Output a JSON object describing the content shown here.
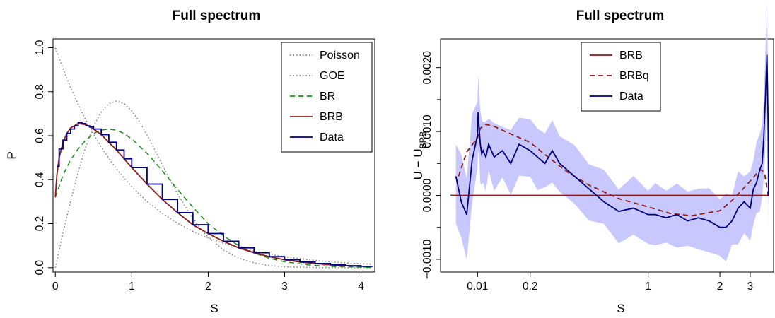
{
  "chart_data": [
    {
      "type": "line",
      "title": "Full spectrum",
      "xlabel": "S",
      "ylabel": "P",
      "xlim": [
        -0.03,
        4.18
      ],
      "ylim": [
        -0.02,
        1.04
      ],
      "xticks": [
        0,
        1,
        2,
        3,
        4
      ],
      "yticks": [
        0.0,
        0.2,
        0.4,
        0.6,
        0.8,
        1.0
      ],
      "xtick_labels": [
        "0",
        "1",
        "2",
        "3",
        "4"
      ],
      "ytick_labels": [
        "0.0",
        "0.2",
        "0.4",
        "0.6",
        "0.8",
        "1.0"
      ],
      "legend": {
        "placement": "top-right",
        "entries": [
          {
            "label": "Poisson",
            "color": "#7f7f7f",
            "style": "dotted"
          },
          {
            "label": "GOE",
            "color": "#7f7f7f",
            "style": "dotted"
          },
          {
            "label": "BR",
            "color": "#1a8c1a",
            "style": "dashed"
          },
          {
            "label": "BRB",
            "color": "#8b1a1a",
            "style": "solid"
          },
          {
            "label": "Data",
            "color": "#00007f",
            "style": "solid"
          }
        ]
      },
      "series": [
        {
          "name": "Poisson",
          "color": "#7f7f7f",
          "style": "dotted",
          "x": [
            0,
            0.1,
            0.2,
            0.3,
            0.4,
            0.5,
            0.6,
            0.7,
            0.8,
            0.9,
            1.0,
            1.2,
            1.4,
            1.6,
            1.8,
            2.0,
            2.2,
            2.4,
            2.6,
            2.8,
            3.0,
            3.2,
            3.4,
            3.6,
            3.8,
            4.0,
            4.15
          ],
          "y": [
            1.0,
            0.905,
            0.819,
            0.741,
            0.67,
            0.607,
            0.549,
            0.497,
            0.449,
            0.407,
            0.368,
            0.301,
            0.247,
            0.202,
            0.165,
            0.135,
            0.111,
            0.091,
            0.074,
            0.061,
            0.05,
            0.041,
            0.033,
            0.027,
            0.022,
            0.018,
            0.016
          ]
        },
        {
          "name": "GOE",
          "color": "#7f7f7f",
          "style": "dotted",
          "x": [
            0,
            0.1,
            0.2,
            0.3,
            0.4,
            0.5,
            0.6,
            0.7,
            0.8,
            0.9,
            1.0,
            1.1,
            1.2,
            1.3,
            1.4,
            1.5,
            1.6,
            1.7,
            1.8,
            1.9,
            2.0,
            2.2,
            2.4,
            2.6,
            2.8,
            3.0,
            3.5,
            4.15
          ],
          "y": [
            0.0,
            0.156,
            0.303,
            0.437,
            0.551,
            0.643,
            0.708,
            0.746,
            0.758,
            0.746,
            0.713,
            0.664,
            0.604,
            0.537,
            0.468,
            0.4,
            0.336,
            0.277,
            0.224,
            0.178,
            0.139,
            0.08,
            0.043,
            0.022,
            0.01,
            0.004,
            0.0,
            0.0
          ]
        },
        {
          "name": "BR",
          "color": "#1a8c1a",
          "style": "dashed",
          "x": [
            0,
            0.05,
            0.1,
            0.2,
            0.3,
            0.4,
            0.5,
            0.6,
            0.7,
            0.8,
            0.9,
            1.0,
            1.2,
            1.4,
            1.6,
            1.8,
            2.0,
            2.2,
            2.4,
            2.6,
            2.8,
            3.0,
            3.3,
            3.6,
            4.0,
            4.15
          ],
          "y": [
            0.32,
            0.37,
            0.42,
            0.49,
            0.54,
            0.58,
            0.61,
            0.625,
            0.63,
            0.625,
            0.61,
            0.585,
            0.52,
            0.44,
            0.355,
            0.275,
            0.2,
            0.145,
            0.1,
            0.067,
            0.043,
            0.027,
            0.013,
            0.006,
            0.002,
            0.001
          ]
        },
        {
          "name": "BRB",
          "color": "#8b1a1a",
          "style": "solid",
          "x": [
            0,
            0.02,
            0.05,
            0.1,
            0.15,
            0.2,
            0.3,
            0.4,
            0.5,
            0.6,
            0.7,
            0.8,
            0.9,
            1.0,
            1.2,
            1.4,
            1.6,
            1.8,
            2.0,
            2.2,
            2.4,
            2.6,
            2.8,
            3.0,
            3.2,
            3.4,
            3.6,
            3.8,
            4.0,
            4.15
          ],
          "y": [
            0.32,
            0.42,
            0.5,
            0.57,
            0.61,
            0.635,
            0.655,
            0.65,
            0.63,
            0.605,
            0.57,
            0.535,
            0.495,
            0.455,
            0.38,
            0.31,
            0.25,
            0.195,
            0.155,
            0.12,
            0.09,
            0.068,
            0.05,
            0.036,
            0.026,
            0.019,
            0.013,
            0.009,
            0.006,
            0.005
          ]
        },
        {
          "name": "Data",
          "color": "#00007f",
          "style": "solid",
          "x": [
            0.02,
            0.05,
            0.1,
            0.15,
            0.2,
            0.25,
            0.3,
            0.35,
            0.4,
            0.45,
            0.5,
            0.6,
            0.7,
            0.8,
            0.9,
            1.0,
            1.2,
            1.4,
            1.6,
            1.8,
            2.0,
            2.2,
            2.4,
            2.6,
            2.8,
            3.0,
            3.2,
            3.4,
            3.6,
            3.8,
            4.0,
            4.15
          ],
          "y": [
            0.46,
            0.54,
            0.58,
            0.61,
            0.63,
            0.645,
            0.66,
            0.655,
            0.645,
            0.64,
            0.63,
            0.605,
            0.57,
            0.535,
            0.495,
            0.455,
            0.38,
            0.31,
            0.25,
            0.195,
            0.155,
            0.12,
            0.09,
            0.068,
            0.05,
            0.036,
            0.026,
            0.019,
            0.013,
            0.009,
            0.006,
            0.005
          ]
        }
      ]
    },
    {
      "type": "line",
      "title": "Full spectrum",
      "xlabel": "S",
      "ylabel_main": "U − U",
      "ylabel_sub": "BRB",
      "x_scale": "transformed",
      "xlim": [
        0.0,
        4.2
      ],
      "ylim": [
        -0.0012,
        0.00245
      ],
      "xticks": [
        0.01,
        0.2,
        1,
        2,
        3
      ],
      "xtick_labels": [
        "0.01",
        "0.2",
        "1",
        "2",
        "3"
      ],
      "yticks": [
        -0.001,
        0.0,
        0.001,
        0.002
      ],
      "ytick_labels": [
        "−0.0010",
        "0.0000",
        "0.0010",
        "0.0020"
      ],
      "legend": {
        "placement": "top-center",
        "entries": [
          {
            "label": "BRB",
            "color": "#8b1a1a",
            "style": "solid"
          },
          {
            "label": "BRBq",
            "color": "#8b1a1a",
            "style": "dashed"
          },
          {
            "label": "Data",
            "color": "#00007f",
            "style": "solid"
          }
        ]
      },
      "band": {
        "color": "#c8c8ff",
        "half_width": [
          0.00062,
          0.00052,
          0.00047,
          0.00044,
          0.00043,
          0.00042,
          0.00042,
          0.00043,
          0.00045,
          0.00048,
          0.00055,
          0.0007
        ]
      },
      "series": [
        {
          "name": "BRB",
          "color": "#8b1a1a",
          "style": "solid",
          "x": [
            0.0,
            4.2
          ],
          "y": [
            0.0,
            0.0
          ]
        },
        {
          "name": "BRBq",
          "color": "#8b1a1a",
          "style": "dashed",
          "x": [
            0.003,
            0.006,
            0.01,
            0.02,
            0.04,
            0.07,
            0.12,
            0.2,
            0.3,
            0.45,
            0.6,
            0.8,
            1.0,
            1.3,
            1.6,
            2.0,
            2.4,
            2.8,
            3.2,
            3.5,
            3.7,
            3.9,
            4.15
          ],
          "y": [
            0.0003,
            0.00068,
            0.0009,
            0.00105,
            0.00111,
            0.00108,
            0.00098,
            0.00083,
            0.00064,
            0.00037,
            0.00016,
            -5e-05,
            -0.00018,
            -0.00028,
            -0.00032,
            -0.00024,
            -8e-05,
            0.00012,
            0.00028,
            0.00037,
            0.0004,
            0.00035,
            -5e-05
          ]
        },
        {
          "name": "Data",
          "color": "#00007f",
          "style": "solid",
          "x": [
            0.002,
            0.004,
            0.006,
            0.008,
            0.01,
            0.012,
            0.015,
            0.02,
            0.025,
            0.03,
            0.04,
            0.05,
            0.07,
            0.1,
            0.13,
            0.16,
            0.2,
            0.25,
            0.3,
            0.35,
            0.4,
            0.5,
            0.6,
            0.7,
            0.8,
            0.9,
            1.0,
            1.1,
            1.25,
            1.4,
            1.55,
            1.7,
            1.85,
            2.0,
            2.2,
            2.4,
            2.6,
            2.8,
            3.0,
            3.2,
            3.4,
            3.6,
            3.75,
            3.85,
            3.95,
            4.05,
            4.12,
            4.15
          ],
          "y": [
            0.0003,
            -0.0001,
            -0.0003,
            0.00055,
            0.00095,
            0.0013,
            0.0011,
            0.0008,
            0.00065,
            0.0007,
            0.0006,
            0.0008,
            0.0006,
            0.0007,
            0.0005,
            0.0008,
            0.0007,
            0.0006,
            0.0005,
            0.0007,
            0.0005,
            0.0003,
            0.0001,
            -0.0001,
            -0.00025,
            -0.0002,
            -0.0003,
            -0.0003,
            -0.00035,
            -0.0003,
            -0.0004,
            -0.00035,
            -0.0004,
            -0.0005,
            -0.0005,
            -0.0004,
            -0.0002,
            -0.0001,
            -0.0002,
            0.0001,
            0.0002,
            0.0004,
            0.0005,
            0.0009,
            0.0015,
            0.0022,
            0.0012,
            0.0
          ]
        }
      ]
    }
  ]
}
